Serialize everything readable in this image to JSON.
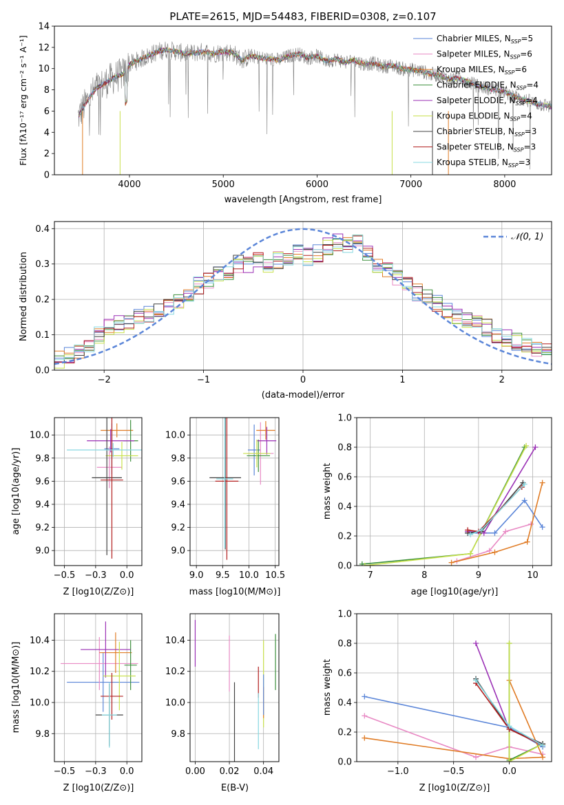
{
  "chart_data": [
    {
      "id": "spectrum",
      "type": "line",
      "title": "PLATE=2615, MJD=54483, FIBERID=0308, z=0.107",
      "xlabel": "wavelength [Angstrom, rest frame]",
      "ylabel": "Flux [fλ10⁻¹⁷ erg cm⁻² s⁻¹ A⁻¹]",
      "xlim": [
        3200,
        8500
      ],
      "ylim": [
        0,
        14
      ],
      "xticks": [
        4000,
        5000,
        6000,
        7000,
        8000
      ],
      "yticks": [
        0,
        2,
        4,
        6,
        8,
        10,
        12,
        14
      ],
      "grid": false,
      "legend_position": "top-right",
      "data_curve": {
        "x": [
          3450,
          3500,
          3550,
          3600,
          3650,
          3700,
          3750,
          3800,
          3850,
          3900,
          3950,
          4000,
          4100,
          4200,
          4300,
          4400,
          4500,
          4600,
          4700,
          4800,
          4900,
          5000,
          5100,
          5200,
          5300,
          5400,
          5500,
          5600,
          5700,
          5800,
          5900,
          6000,
          6100,
          6200,
          6300,
          6400,
          6500,
          6600,
          6700,
          6800,
          6900,
          7000,
          7100,
          7200,
          7300,
          7400,
          7500,
          7600,
          7700,
          7800,
          7900,
          8000,
          8100,
          8200,
          8300,
          8400,
          8500
        ],
        "y": [
          5.4,
          6.2,
          7.0,
          7.6,
          8.2,
          8.4,
          8.7,
          9.0,
          9.2,
          9.4,
          9.6,
          10.4,
          10.8,
          11.2,
          11.6,
          11.8,
          11.6,
          11.4,
          11.5,
          11.6,
          11.4,
          11.6,
          11.5,
          10.8,
          11.2,
          11.0,
          10.9,
          10.8,
          11.2,
          11.4,
          11.0,
          11.2,
          10.7,
          10.9,
          10.6,
          10.8,
          10.4,
          10.5,
          10.2,
          10.3,
          10.0,
          9.9,
          9.8,
          9.5,
          9.4,
          9.0,
          9.1,
          8.8,
          8.4,
          8.2,
          8.0,
          7.8,
          7.4,
          7.1,
          6.8,
          6.6,
          6.4
        ]
      },
      "series": [
        {
          "name": "Chabrier MILES, N$_{SSP}$=5",
          "label_main": "Chabrier MILES, N",
          "label_sub": "SSP",
          "label_tail": "=5",
          "color": "#5a85d8"
        },
        {
          "name": "Salpeter MILES, N$_{SSP}$=6",
          "label_main": "Salpeter MILES, N",
          "label_sub": "SSP",
          "label_tail": "=6",
          "color": "#e889c4"
        },
        {
          "name": "Kroupa MILES, N$_{SSP}$=6",
          "label_main": "Kroupa MILES, N",
          "label_sub": "SSP",
          "label_tail": "=6",
          "color": "#e07b24"
        },
        {
          "name": "Chabrier ELODIE, N$_{SSP}$=4",
          "label_main": "Chabrier ELODIE, N",
          "label_sub": "SSP",
          "label_tail": "=4",
          "color": "#3b8f3b"
        },
        {
          "name": "Salpeter ELODIE, N$_{SSP}$=4",
          "label_main": "Salpeter ELODIE, N",
          "label_sub": "SSP",
          "label_tail": "=4",
          "color": "#9a2fb5"
        },
        {
          "name": "Kroupa ELODIE, N$_{SSP}$=4",
          "label_main": "Kroupa ELODIE, N",
          "label_sub": "SSP",
          "label_tail": "=4",
          "color": "#c8e04a"
        },
        {
          "name": "Chabrier STELIB, N$_{SSP}$=3",
          "label_main": "Chabrier STELIB, N",
          "label_sub": "SSP",
          "label_tail": "=3",
          "color": "#404040"
        },
        {
          "name": "Salpeter STELIB, N$_{SSP}$=3",
          "label_main": "Salpeter STELIB, N",
          "label_sub": "SSP",
          "label_tail": "=3",
          "color": "#b21e1e"
        },
        {
          "name": "Kroupa STELIB, N$_{SSP}$=3",
          "label_main": "Kroupa STELIB, N",
          "label_sub": "SSP",
          "label_tail": "=3",
          "color": "#86d8e0"
        }
      ]
    },
    {
      "id": "residuals",
      "type": "bar",
      "xlabel": "(data-model)/error",
      "ylabel": "Normed distribution",
      "xlim": [
        -2.5,
        2.5
      ],
      "ylim": [
        0,
        0.42
      ],
      "xticks": [
        -2,
        -1,
        0,
        1,
        2
      ],
      "yticks": [
        0.0,
        0.1,
        0.2,
        0.3,
        0.4
      ],
      "grid": true,
      "legend_position": "top-right",
      "legend_label": "𝒩(0, 1)",
      "normal_color": "#5a85d8",
      "bin_width": 0.1,
      "bin_centers": [
        -2.45,
        -2.35,
        -2.25,
        -2.15,
        -2.05,
        -1.95,
        -1.85,
        -1.75,
        -1.65,
        -1.55,
        -1.45,
        -1.35,
        -1.25,
        -1.15,
        -1.05,
        -0.95,
        -0.85,
        -0.75,
        -0.65,
        -0.55,
        -0.45,
        -0.35,
        -0.25,
        -0.15,
        -0.05,
        0.05,
        0.15,
        0.25,
        0.35,
        0.45,
        0.55,
        0.65,
        0.75,
        0.85,
        0.95,
        1.05,
        1.15,
        1.25,
        1.35,
        1.45,
        1.55,
        1.65,
        1.75,
        1.85,
        1.95,
        2.05,
        2.15,
        2.25,
        2.35,
        2.45
      ],
      "base_distribution": [
        0.03,
        0.04,
        0.05,
        0.06,
        0.1,
        0.12,
        0.13,
        0.14,
        0.15,
        0.16,
        0.17,
        0.18,
        0.2,
        0.22,
        0.24,
        0.25,
        0.27,
        0.28,
        0.3,
        0.3,
        0.31,
        0.3,
        0.31,
        0.32,
        0.33,
        0.32,
        0.33,
        0.35,
        0.36,
        0.35,
        0.36,
        0.33,
        0.3,
        0.28,
        0.26,
        0.24,
        0.22,
        0.21,
        0.19,
        0.17,
        0.15,
        0.14,
        0.13,
        0.12,
        0.1,
        0.09,
        0.08,
        0.07,
        0.06,
        0.05
      ]
    },
    {
      "id": "age_vs_Z",
      "type": "scatter",
      "xlabel": "Z [log10(Z/Z⊙)]",
      "ylabel": "age [log10(age/yr)]",
      "xlim": [
        -0.58,
        0.12
      ],
      "ylim": [
        8.87,
        10.15
      ],
      "xticks": [
        -0.5,
        -0.25,
        0.0
      ],
      "yticks": [
        9.0,
        9.2,
        9.4,
        9.6,
        9.8,
        10.0
      ],
      "grid": true,
      "points": [
        {
          "x": -0.12,
          "y": 9.88,
          "xerr": 0.06,
          "yerr": 0.22,
          "color": "#5a85d8"
        },
        {
          "x": -0.14,
          "y": 9.72,
          "xerr": 0.1,
          "yerr": 0.18,
          "color": "#e889c4"
        },
        {
          "x": -0.08,
          "y": 10.04,
          "xerr": 0.13,
          "yerr": 0.06,
          "color": "#e07b24"
        },
        {
          "x": 0.03,
          "y": 9.95,
          "xerr": 0.06,
          "yerr": 0.18,
          "color": "#3b8f3b"
        },
        {
          "x": -0.13,
          "y": 9.95,
          "xerr": 0.19,
          "yerr": 0.1,
          "color": "#9a2fb5"
        },
        {
          "x": -0.04,
          "y": 9.82,
          "xerr": 0.13,
          "yerr": 0.12,
          "color": "#c8e04a"
        },
        {
          "x": -0.16,
          "y": 9.63,
          "xerr": 0.12,
          "yerr": 0.67,
          "color": "#404040"
        },
        {
          "x": -0.12,
          "y": 9.61,
          "xerr": 0.09,
          "yerr": 0.68,
          "color": "#b21e1e"
        },
        {
          "x": -0.11,
          "y": 9.87,
          "xerr": 0.37,
          "yerr": 0.06,
          "color": "#86d8e0"
        }
      ]
    },
    {
      "id": "age_vs_mass",
      "type": "scatter",
      "xlabel": "mass [log10(M/M⊙)]",
      "ylabel": "",
      "xlim": [
        8.88,
        10.57
      ],
      "ylim": [
        8.87,
        10.15
      ],
      "xticks": [
        9.0,
        9.5,
        10.0,
        10.5
      ],
      "yticks": [
        9.0,
        9.2,
        9.4,
        9.6,
        9.8,
        10.0
      ],
      "grid": true,
      "points": [
        {
          "x": 10.1,
          "y": 9.87,
          "xerr": 0.12,
          "yerr": 0.22,
          "color": "#5a85d8"
        },
        {
          "x": 10.22,
          "y": 9.84,
          "xerr": 0.25,
          "yerr": 0.27,
          "color": "#e889c4"
        },
        {
          "x": 10.32,
          "y": 10.04,
          "xerr": 0.18,
          "yerr": 0.08,
          "color": "#e07b24"
        },
        {
          "x": 10.18,
          "y": 9.82,
          "xerr": 0.22,
          "yerr": 0.14,
          "color": "#3b8f3b"
        },
        {
          "x": 10.34,
          "y": 9.95,
          "xerr": 0.18,
          "yerr": 0.12,
          "color": "#9a2fb5"
        },
        {
          "x": 10.15,
          "y": 9.84,
          "xerr": 0.26,
          "yerr": 0.12,
          "color": "#c8e04a"
        },
        {
          "x": 9.55,
          "y": 9.63,
          "xerr": 0.3,
          "yerr": 0.62,
          "color": "#404040"
        },
        {
          "x": 9.58,
          "y": 9.6,
          "xerr": 0.22,
          "yerr": 0.68,
          "color": "#b21e1e"
        },
        {
          "x": 9.54,
          "y": 9.62,
          "xerr": 0.16,
          "yerr": 0.6,
          "color": "#86d8e0"
        }
      ]
    },
    {
      "id": "weight_vs_age",
      "type": "line",
      "xlabel": "age [log10(age/yr)]",
      "ylabel": "mass weight",
      "xlim": [
        6.75,
        10.35
      ],
      "ylim": [
        0,
        1.0
      ],
      "xticks": [
        7,
        8,
        9,
        10
      ],
      "yticks": [
        0.0,
        0.2,
        0.4,
        0.6,
        0.8,
        1.0
      ],
      "grid": true,
      "series": [
        {
          "color": "#5a85d8",
          "x": [
            8.8,
            9.3,
            9.85,
            10.18
          ],
          "y": [
            0.22,
            0.22,
            0.44,
            0.26
          ]
        },
        {
          "color": "#e889c4",
          "x": [
            8.6,
            9.2,
            9.5,
            9.97
          ],
          "y": [
            0.03,
            0.1,
            0.23,
            0.28
          ]
        },
        {
          "color": "#e07b24",
          "x": [
            8.5,
            9.3,
            9.9,
            10.18
          ],
          "y": [
            0.02,
            0.09,
            0.16,
            0.56
          ]
        },
        {
          "color": "#3b8f3b",
          "x": [
            6.85,
            8.85,
            9.85
          ],
          "y": [
            0.01,
            0.08,
            0.8
          ]
        },
        {
          "color": "#9a2fb5",
          "x": [
            8.8,
            9.1,
            10.05
          ],
          "y": [
            0.23,
            0.22,
            0.8
          ]
        },
        {
          "color": "#c8e04a",
          "x": [
            6.9,
            8.85,
            9.88
          ],
          "y": [
            0.0,
            0.08,
            0.81
          ]
        },
        {
          "color": "#404040",
          "x": [
            8.8,
            9.05,
            9.82
          ],
          "y": [
            0.22,
            0.23,
            0.56
          ]
        },
        {
          "color": "#b21e1e",
          "x": [
            8.8,
            9.0,
            9.8
          ],
          "y": [
            0.24,
            0.23,
            0.53
          ]
        },
        {
          "color": "#86d8e0",
          "x": [
            8.85,
            9.05,
            9.85
          ],
          "y": [
            0.21,
            0.24,
            0.55
          ]
        }
      ]
    },
    {
      "id": "mass_vs_Z",
      "type": "scatter",
      "xlabel": "Z [log10(Z/Z⊙)]",
      "ylabel": "mass [log10(M/M⊙)]",
      "xlim": [
        -0.58,
        0.12
      ],
      "ylim": [
        9.62,
        10.57
      ],
      "xticks": [
        -0.5,
        -0.25,
        0.0
      ],
      "yticks": [
        9.8,
        10.0,
        10.2,
        10.4
      ],
      "grid": true,
      "points": [
        {
          "x": -0.19,
          "y": 10.13,
          "xerr": 0.29,
          "yerr": 0.19,
          "color": "#5a85d8"
        },
        {
          "x": -0.22,
          "y": 10.25,
          "xerr": 0.31,
          "yerr": 0.17,
          "color": "#e889c4"
        },
        {
          "x": -0.09,
          "y": 10.32,
          "xerr": 0.13,
          "yerr": 0.13,
          "color": "#e07b24"
        },
        {
          "x": 0.03,
          "y": 10.24,
          "xerr": 0.05,
          "yerr": 0.16,
          "color": "#3b8f3b"
        },
        {
          "x": -0.17,
          "y": 10.34,
          "xerr": 0.2,
          "yerr": 0.18,
          "color": "#9a2fb5"
        },
        {
          "x": -0.06,
          "y": 10.17,
          "xerr": 0.13,
          "yerr": 0.22,
          "color": "#c8e04a"
        },
        {
          "x": -0.14,
          "y": 9.92,
          "xerr": 0.11,
          "yerr": 0.2,
          "color": "#404040"
        },
        {
          "x": -0.12,
          "y": 10.04,
          "xerr": 0.09,
          "yerr": 0.15,
          "color": "#b21e1e"
        },
        {
          "x": -0.14,
          "y": 9.92,
          "xerr": 0.06,
          "yerr": 0.21,
          "color": "#86d8e0"
        }
      ]
    },
    {
      "id": "mass_vs_EBV",
      "type": "scatter",
      "xlabel": "E(B-V)",
      "ylabel": "",
      "xlim": [
        -0.003,
        0.049
      ],
      "ylim": [
        9.62,
        10.57
      ],
      "xticks": [
        0.0,
        0.02,
        0.04
      ],
      "yticks": [
        9.8,
        10.0,
        10.2,
        10.4
      ],
      "grid": true,
      "points": [
        {
          "x": 0.0,
          "y": 10.38,
          "xerr": 0.0,
          "yerr": 0.15,
          "color": "#9a2fb5"
        },
        {
          "x": 0.02,
          "y": 10.25,
          "xerr": 0.0,
          "yerr": 0.18,
          "color": "#e889c4"
        },
        {
          "x": 0.023,
          "y": 9.8,
          "xerr": 0.0,
          "yerr": 0.33,
          "color": "#404040"
        },
        {
          "x": 0.037,
          "y": 10.13,
          "xerr": 0.0,
          "yerr": 0.1,
          "color": "#b21e1e"
        },
        {
          "x": 0.037,
          "y": 9.88,
          "xerr": 0.0,
          "yerr": 0.18,
          "color": "#86d8e0"
        },
        {
          "x": 0.04,
          "y": 10.12,
          "xerr": 0.0,
          "yerr": 0.28,
          "color": "#c8e04a"
        },
        {
          "x": 0.04,
          "y": 10.0,
          "xerr": 0.0,
          "yerr": 0.1,
          "color": "#e07b24"
        },
        {
          "x": 0.04,
          "y": 10.05,
          "xerr": 0.0,
          "yerr": 0.13,
          "color": "#5a85d8"
        },
        {
          "x": 0.047,
          "y": 10.26,
          "xerr": 0.0,
          "yerr": 0.18,
          "color": "#3b8f3b"
        }
      ]
    },
    {
      "id": "weight_vs_Z",
      "type": "line",
      "xlabel": "Z [log10(Z/Z⊙)]",
      "ylabel": "mass weight",
      "xlim": [
        -1.37,
        0.38
      ],
      "ylim": [
        0,
        1.0
      ],
      "xticks": [
        -1.0,
        -0.5,
        0.0
      ],
      "yticks": [
        0.0,
        0.2,
        0.4,
        0.6,
        0.8,
        1.0
      ],
      "grid": true,
      "series": [
        {
          "color": "#5a85d8",
          "x": [
            -1.3,
            0.0,
            0.3
          ],
          "y": [
            0.44,
            0.23,
            0.1
          ]
        },
        {
          "color": "#e889c4",
          "x": [
            -1.3,
            -0.3,
            0.0,
            0.3
          ],
          "y": [
            0.31,
            0.03,
            0.1,
            0.05
          ]
        },
        {
          "color": "#e07b24",
          "x": [
            -1.3,
            0.0,
            0.3,
            0.0
          ],
          "y": [
            0.16,
            0.02,
            0.03,
            0.55
          ]
        },
        {
          "color": "#3b8f3b",
          "x": [
            0.0,
            0.0,
            0.3
          ],
          "y": [
            0.8,
            0.01,
            0.12
          ]
        },
        {
          "color": "#9a2fb5",
          "x": [
            -0.3,
            0.0,
            0.3
          ],
          "y": [
            0.8,
            0.22,
            0.12
          ]
        },
        {
          "color": "#c8e04a",
          "x": [
            0.0,
            0.0,
            0.3
          ],
          "y": [
            0.8,
            0.0,
            0.12
          ]
        },
        {
          "color": "#404040",
          "x": [
            -0.3,
            0.0,
            0.3
          ],
          "y": [
            0.56,
            0.22,
            0.12
          ]
        },
        {
          "color": "#b21e1e",
          "x": [
            -0.3,
            0.0,
            0.3
          ],
          "y": [
            0.53,
            0.22,
            0.11
          ]
        },
        {
          "color": "#86d8e0",
          "x": [
            -0.3,
            0.0,
            0.3
          ],
          "y": [
            0.55,
            0.24,
            0.11
          ]
        }
      ]
    }
  ]
}
